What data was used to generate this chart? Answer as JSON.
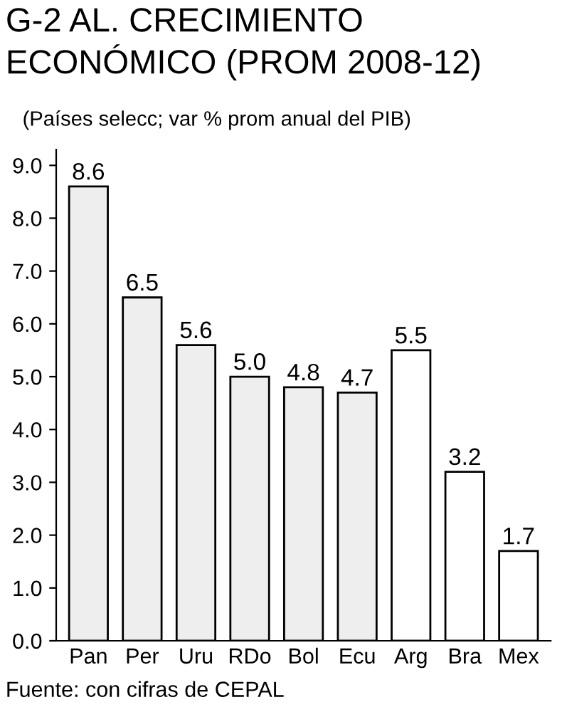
{
  "chart_data": {
    "type": "bar",
    "title": "G-2 AL. CRECIMIENTO ECONÓMICO (PROM 2008-12)",
    "subtitle": "(Países selecc; var % prom anual del PIB)",
    "categories": [
      "Pan",
      "Per",
      "Uru",
      "RDo",
      "Bol",
      "Ecu",
      "Arg",
      "Bra",
      "Mex"
    ],
    "values": [
      8.6,
      6.5,
      5.6,
      5.0,
      4.8,
      4.7,
      5.5,
      3.2,
      1.7
    ],
    "colors": [
      "#eeeeee",
      "#eeeeee",
      "#eeeeee",
      "#eeeeee",
      "#eeeeee",
      "#eeeeee",
      "#ffffff",
      "#ffffff",
      "#ffffff"
    ],
    "ylim": [
      0,
      9.3
    ],
    "yticks": [
      {
        "value": 0,
        "label": "0.0"
      },
      {
        "value": 1,
        "label": "1.0"
      },
      {
        "value": 2,
        "label": "2.0"
      },
      {
        "value": 3,
        "label": "3.0"
      },
      {
        "value": 4,
        "label": "4.0"
      },
      {
        "value": 5,
        "label": "5.0"
      },
      {
        "value": 6,
        "label": "6.0"
      },
      {
        "value": 7,
        "label": "7.0"
      },
      {
        "value": 8,
        "label": "8.0"
      },
      {
        "value": 9,
        "label": "9.0"
      }
    ],
    "value_labels": [
      "8.6",
      "6.5",
      "5.6",
      "5.0",
      "4.8",
      "4.7",
      "5.5",
      "3.2",
      "1.7"
    ],
    "grid": false,
    "legend": false,
    "annotations": [
      "Fuente: con cifras de CEPAL"
    ]
  }
}
